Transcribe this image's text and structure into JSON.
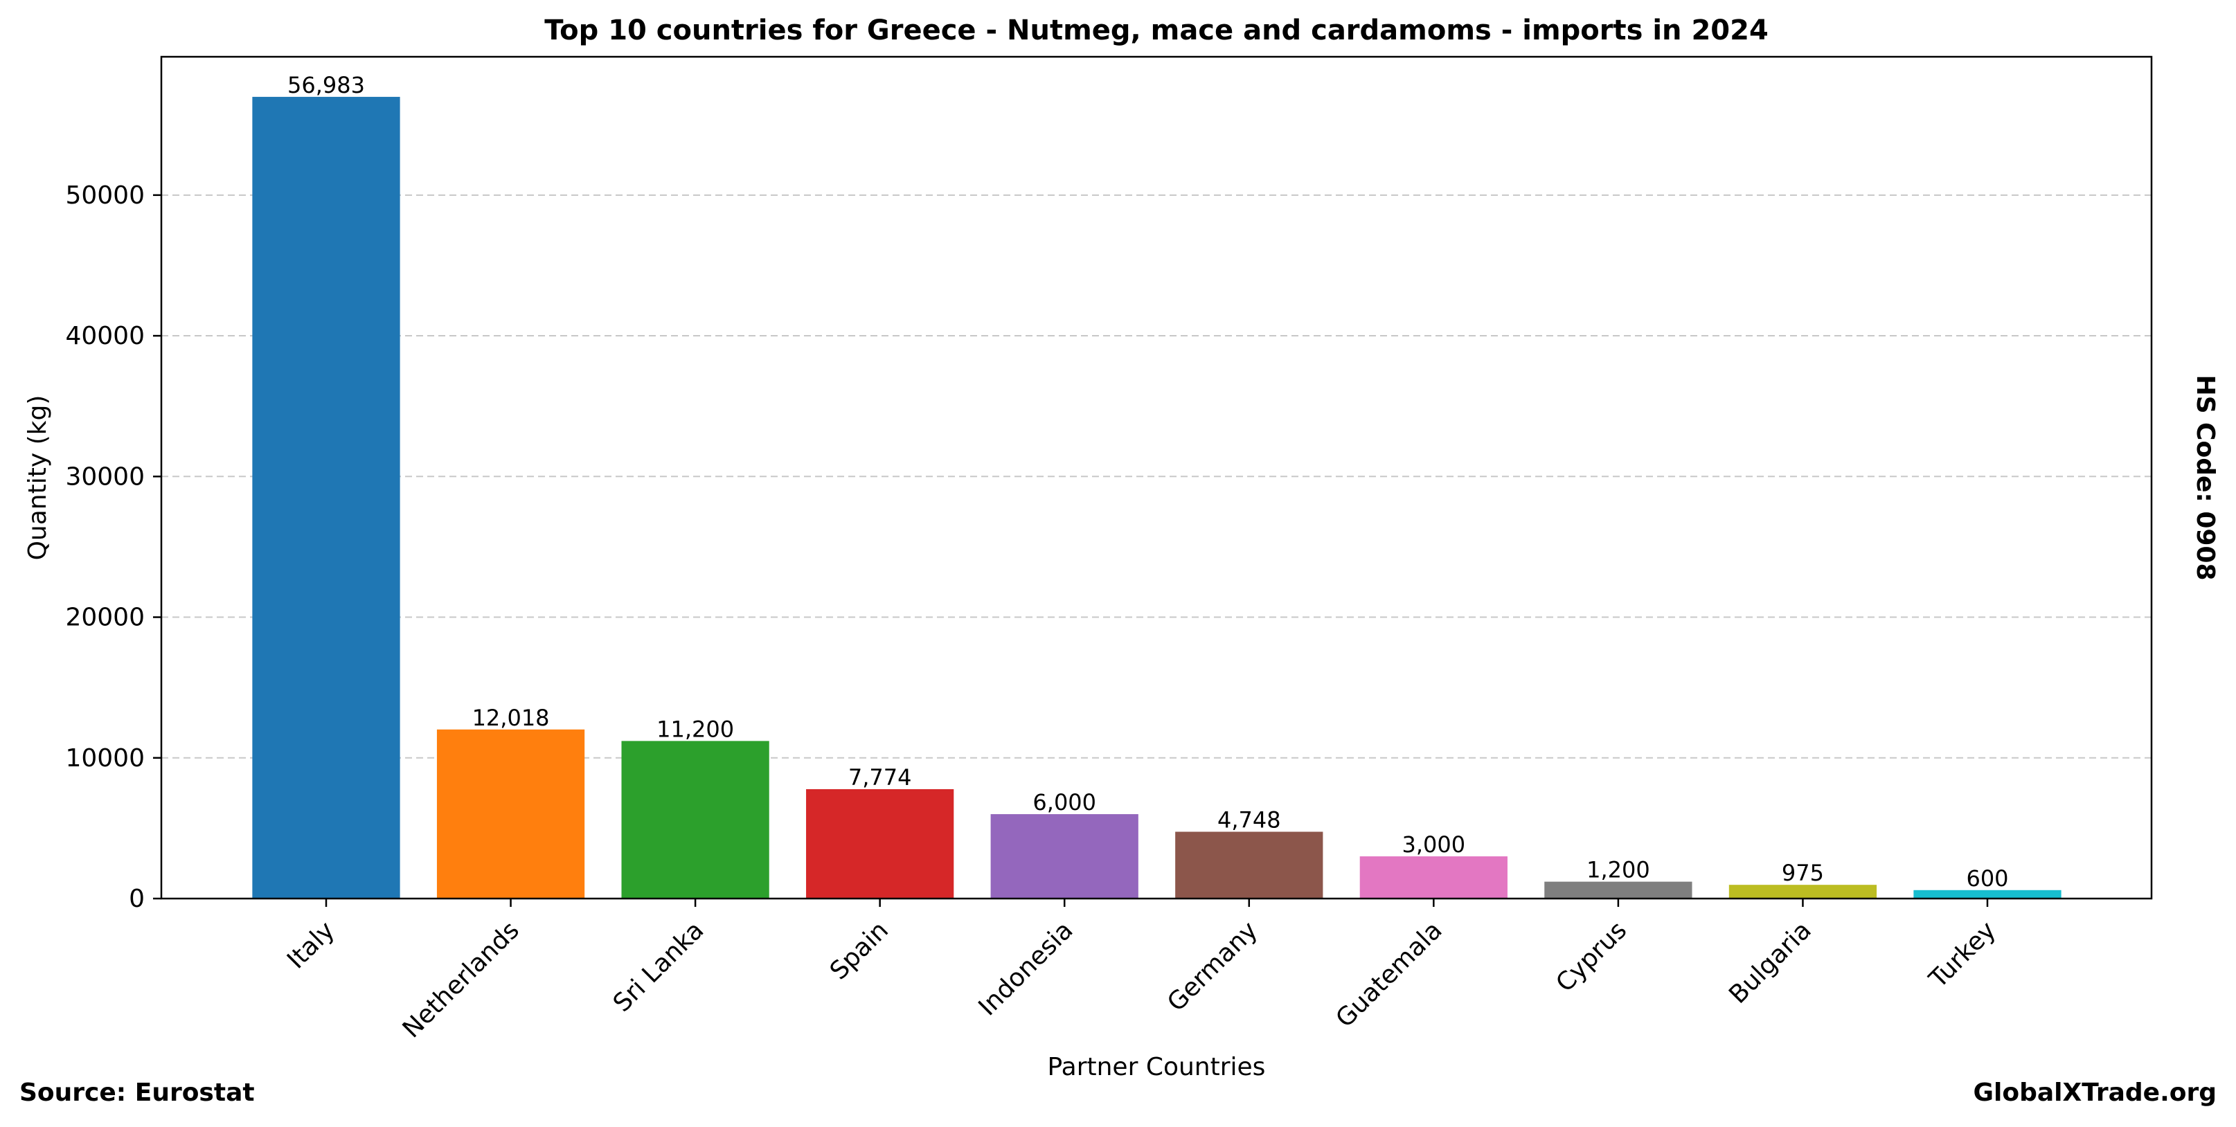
{
  "chart_data": {
    "type": "bar",
    "title": "Top 10 countries for Greece - Nutmeg, mace and cardamoms - imports in 2024",
    "xlabel": "Partner Countries",
    "ylabel": "Quantity (kg)",
    "categories": [
      "Italy",
      "Netherlands",
      "Sri Lanka",
      "Spain",
      "Indonesia",
      "Germany",
      "Guatemala",
      "Cyprus",
      "Bulgaria",
      "Turkey"
    ],
    "values": [
      56983,
      12018,
      11200,
      7774,
      6000,
      4748,
      3000,
      1200,
      975,
      600
    ],
    "value_labels": [
      "56,983",
      "12,018",
      "11,200",
      "7,774",
      "6,000",
      "4,748",
      "3,000",
      "1,200",
      "975",
      "600"
    ],
    "colors": [
      "#1f77b4",
      "#ff7f0e",
      "#2ca02c",
      "#d62728",
      "#9467bd",
      "#8c564b",
      "#e377c2",
      "#7f7f7f",
      "#bcbd22",
      "#17becf"
    ],
    "ylim": [
      0,
      59832
    ],
    "yticks": [
      0,
      10000,
      20000,
      30000,
      40000,
      50000
    ],
    "ytick_labels": [
      "0",
      "10000",
      "20000",
      "30000",
      "40000",
      "50000"
    ],
    "grid": "horizontal dashed",
    "legend": "none"
  },
  "annotations": {
    "hs_code": "HS Code: 0908",
    "source": "Source: Eurostat",
    "site": "GlobalXTrade.org"
  }
}
